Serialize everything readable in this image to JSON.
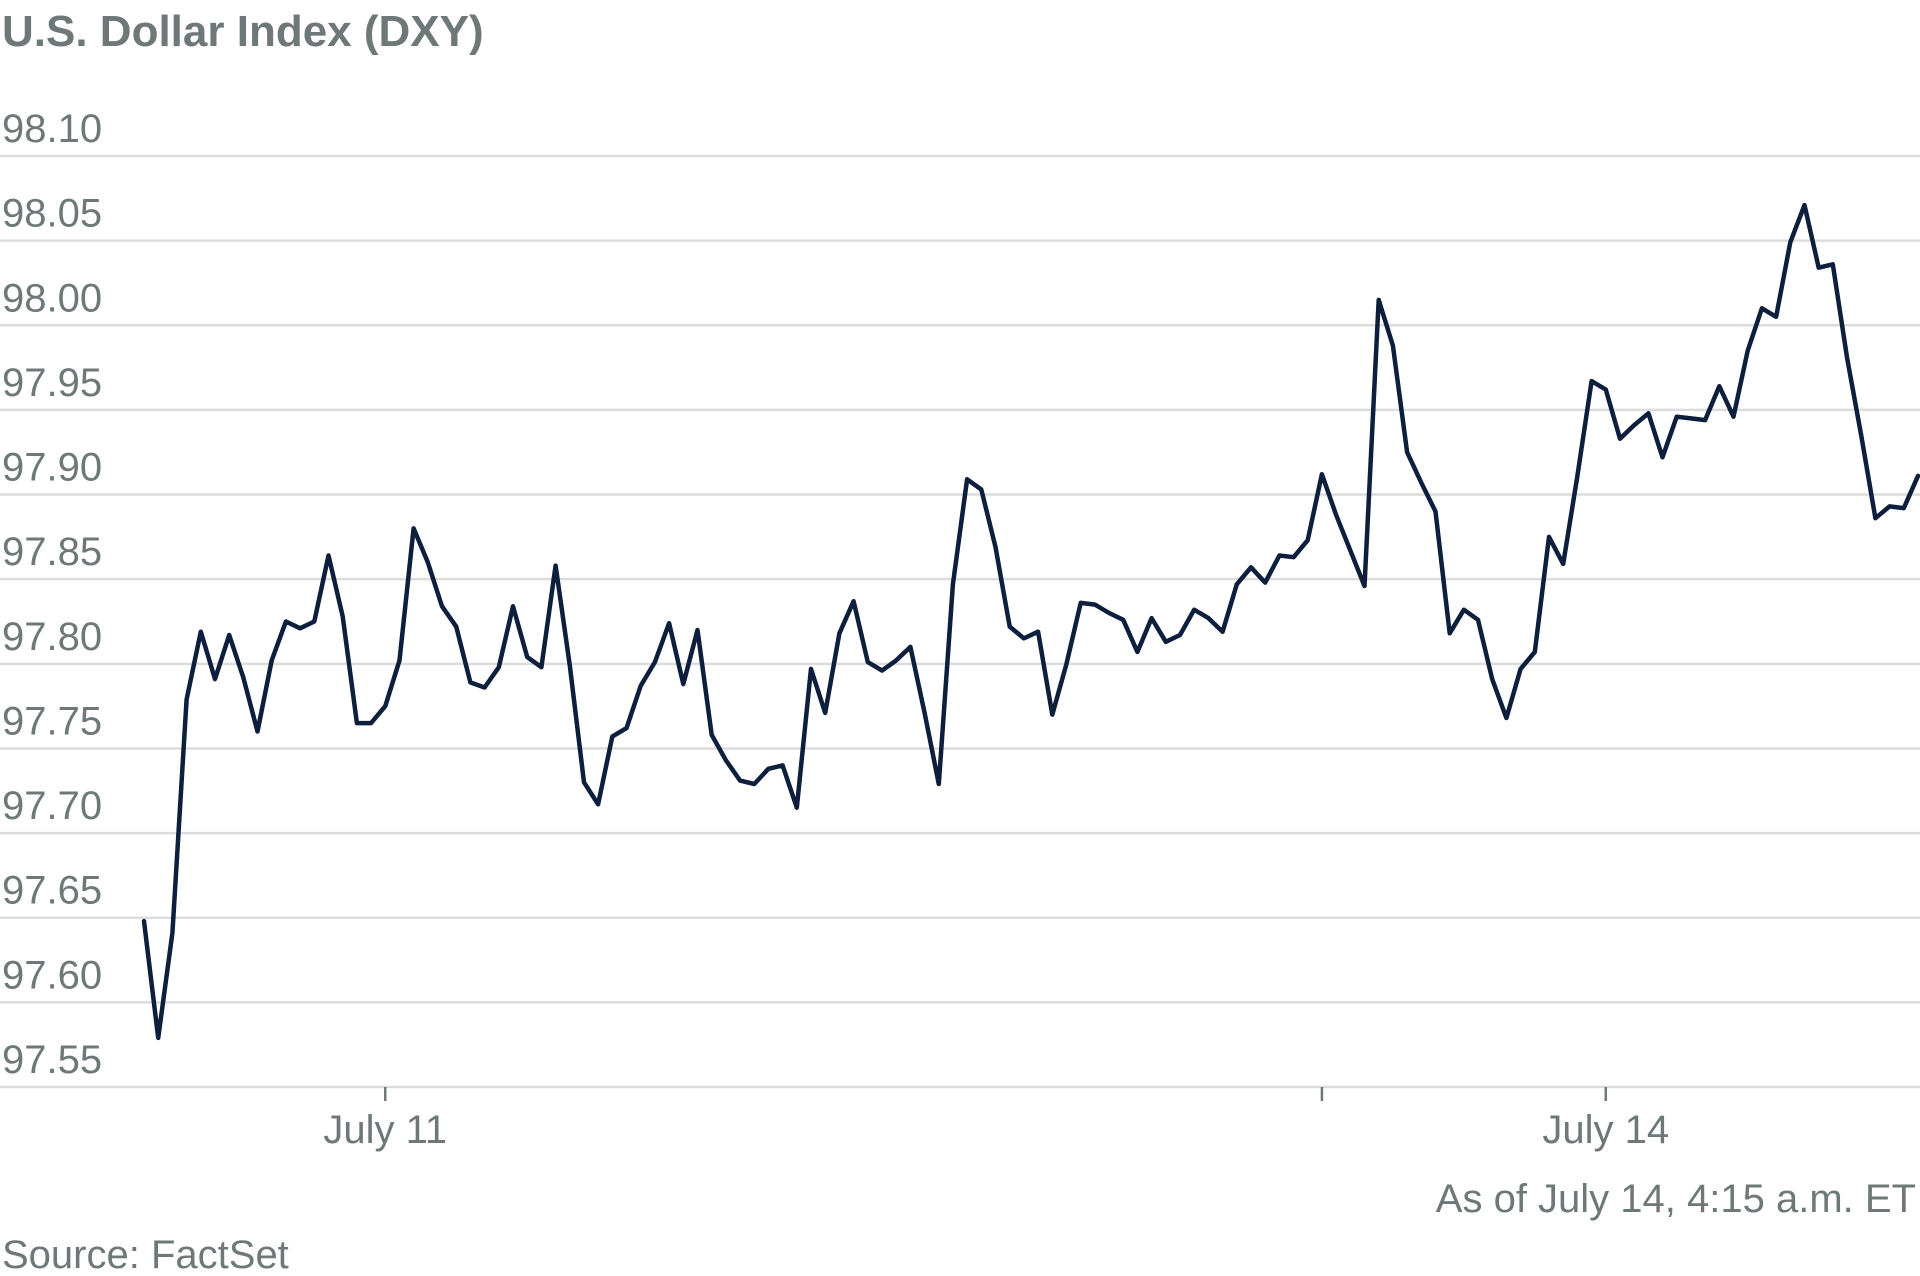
{
  "chart_data": {
    "type": "line",
    "title": "U.S. Dollar Index (DXY)",
    "xlabel": "",
    "ylabel": "",
    "ylim": [
      97.55,
      98.1
    ],
    "yticks": [
      "98.10",
      "98.05",
      "98.00",
      "97.95",
      "97.90",
      "97.85",
      "97.80",
      "97.75",
      "97.70",
      "97.65",
      "97.60",
      "97.55"
    ],
    "xticks": [
      {
        "label": "July 11",
        "index": 17
      },
      {
        "label": "",
        "index": 83
      },
      {
        "label": "July 14",
        "index": 103
      }
    ],
    "grid": true,
    "legend": "none",
    "series": [
      {
        "color": "#0d1f3c",
        "values": [
          97.648,
          97.579,
          97.641,
          97.779,
          97.819,
          97.791,
          97.817,
          97.792,
          97.76,
          97.802,
          97.825,
          97.821,
          97.825,
          97.864,
          97.828,
          97.765,
          97.765,
          97.775,
          97.802,
          97.88,
          97.86,
          97.834,
          97.822,
          97.789,
          97.786,
          97.798,
          97.834,
          97.804,
          97.798,
          97.858,
          97.799,
          97.73,
          97.717,
          97.757,
          97.762,
          97.787,
          97.801,
          97.824,
          97.788,
          97.82,
          97.758,
          97.743,
          97.731,
          97.729,
          97.738,
          97.74,
          97.715,
          97.797,
          97.771,
          97.818,
          97.837,
          97.801,
          97.796,
          97.802,
          97.81,
          97.771,
          97.729,
          97.847,
          97.909,
          97.903,
          97.869,
          97.822,
          97.815,
          97.819,
          97.77,
          97.8,
          97.836,
          97.835,
          97.83,
          97.826,
          97.807,
          97.827,
          97.813,
          97.817,
          97.832,
          97.827,
          97.819,
          97.847,
          97.857,
          97.848,
          97.864,
          97.863,
          97.873,
          97.912,
          97.888,
          97.867,
          97.846,
          98.015,
          97.988,
          97.925,
          97.907,
          97.89,
          97.818,
          97.832,
          97.826,
          97.791,
          97.768,
          97.797,
          97.807,
          97.875,
          97.859,
          97.911,
          97.967,
          97.962,
          97.933,
          97.941,
          97.948,
          97.922,
          97.946,
          97.945,
          97.944,
          97.964,
          97.946,
          97.985,
          98.01,
          98.005,
          98.049,
          98.071,
          98.034,
          98.036,
          97.981,
          97.935,
          97.886,
          97.893,
          97.892,
          97.911
        ]
      }
    ]
  },
  "notes": {
    "as_of": "As of July 14, 4:15 a.m. ET",
    "source": "Source: FactSet"
  }
}
